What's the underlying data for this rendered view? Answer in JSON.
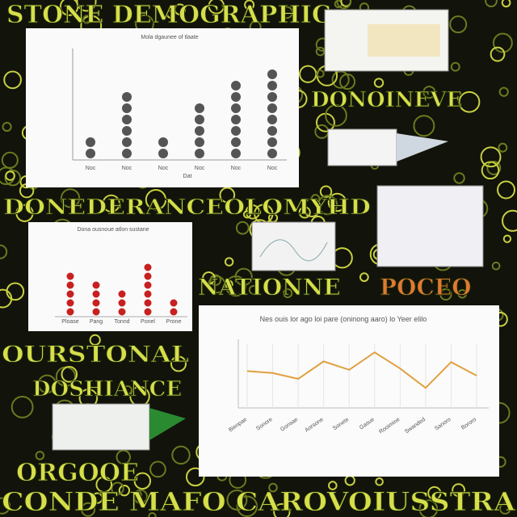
{
  "banners": [
    "STONE DEMOGRAPHIC",
    "DONOINEVE",
    "DONEDERANCEOLOMYHD",
    "NATIONNE",
    "POCEO",
    "OURSTONAL",
    "DOSHIANCE",
    "ORGOOE",
    "CONDE MAFO CAROVOIUSSTRA"
  ],
  "pictograph": {
    "title": "Mola dgaunee of tlaate",
    "categories": [
      "Noc",
      "Noc",
      "Noc",
      "Noc",
      "Noc",
      "Noc"
    ],
    "values": [
      2,
      6,
      2,
      5,
      7,
      8
    ],
    "axis_label": "Dat"
  },
  "dots": {
    "title": "Dona ousnoue atlon sustane",
    "categories": [
      "Ploase",
      "Pang",
      "Tonnd",
      "Ponel",
      "Prone"
    ],
    "values": [
      5,
      4,
      3,
      6,
      2
    ]
  },
  "line": {
    "title": "Nes ouis lor ago loi pare (oninong aaro) lo Yeer elilo",
    "categories": [
      "Bienpae",
      "Sonore",
      "Gonsae",
      "Aorsone",
      "Sonete",
      "Gasue",
      "Rooimine",
      "Swanded",
      "Sanoro",
      "Bororo"
    ],
    "values": [
      57,
      54,
      45,
      72,
      59,
      86,
      61,
      31,
      71,
      50
    ],
    "ylim": [
      0,
      100
    ],
    "color": "#e0a040"
  }
}
